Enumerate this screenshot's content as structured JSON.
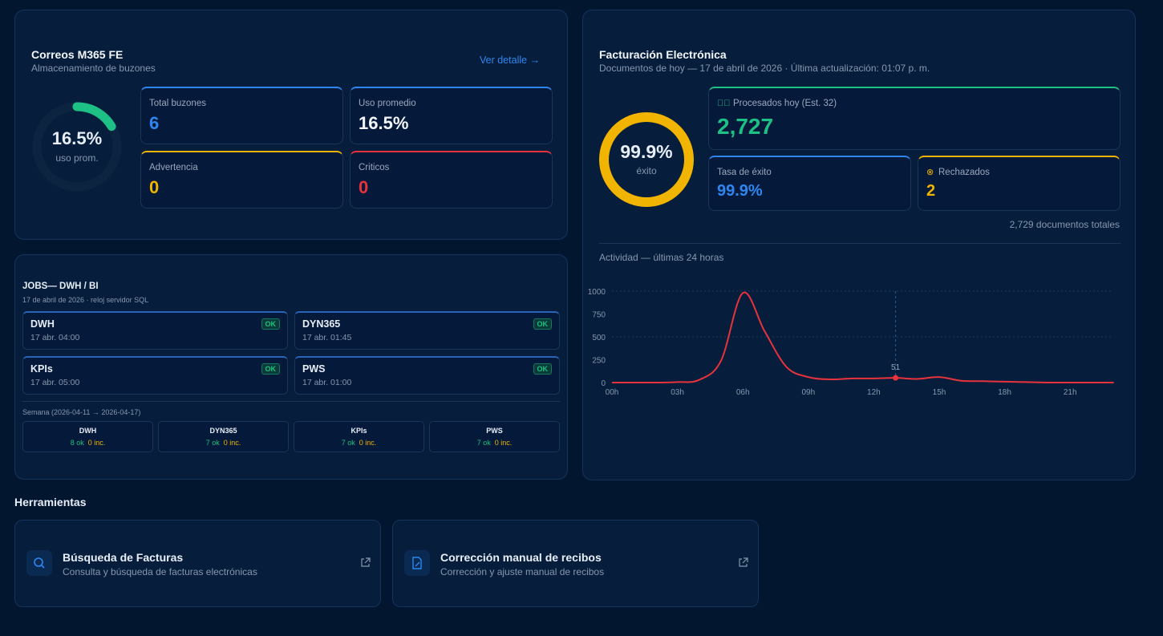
{
  "mail": {
    "title": "Correos M365 FE",
    "subtitle": "Almacenamiento de buzones",
    "detail_link": "Ver detalle",
    "gauge_value": "16.5%",
    "gauge_fraction": 0.165,
    "gauge_label": "uso prom.",
    "stats": [
      {
        "label": "Total buzones",
        "value": "6",
        "color": "#2f86f0"
      },
      {
        "label": "Uso promedio",
        "value": "16.5%",
        "color": "#f2f6fb"
      },
      {
        "label": "Advertencia",
        "value": "0",
        "color": "#f1b400"
      },
      {
        "label": "Criticos",
        "value": "0",
        "color": "#e8323c"
      }
    ]
  },
  "jobs": {
    "title": "JOBS— DWH / BI",
    "subtitle": "17 de abril de 2026 · reloj servidor SQL",
    "items": [
      {
        "name": "DWH",
        "time": "17 abr. 04:00",
        "status": "OK"
      },
      {
        "name": "DYN365",
        "time": "17 abr. 01:45",
        "status": "OK"
      },
      {
        "name": "KPIs",
        "time": "17 abr. 05:00",
        "status": "OK"
      },
      {
        "name": "PWS",
        "time": "17 abr. 01:00",
        "status": "OK"
      }
    ],
    "week_label": "Semana (2026-04-11 → 2026-04-17)",
    "week": [
      {
        "name": "DWH",
        "ok": "8 ok",
        "inc": "0 inc."
      },
      {
        "name": "DYN365",
        "ok": "7 ok",
        "inc": "0 inc."
      },
      {
        "name": "KPIs",
        "ok": "7 ok",
        "inc": "0 inc."
      },
      {
        "name": "PWS",
        "ok": "7 ok",
        "inc": "0 inc."
      }
    ]
  },
  "fe": {
    "title": "Facturación Electrónica",
    "subtitle": "Documentos de hoy — 17 de abril de 2026 · Última actualización: 01:07 p. m.",
    "gauge_value": "99.9%",
    "gauge_label": "éxito",
    "processed_label": "Procesados hoy (Est. 32)",
    "processed_value": "2,727",
    "rate_label": "Tasa de éxito",
    "rate_value": "99.9%",
    "rejected_label": "Rechazados",
    "rejected_value": "2",
    "total": "2,729 documentos totales",
    "activity_title": "Actividad — últimas 24 horas"
  },
  "chart_data": {
    "type": "line",
    "x": [
      "00h",
      "01h",
      "02h",
      "03h",
      "04h",
      "05h",
      "06h",
      "07h",
      "08h",
      "09h",
      "10h",
      "11h",
      "12h",
      "13h",
      "14h",
      "15h",
      "16h",
      "17h",
      "18h",
      "19h",
      "20h",
      "21h",
      "22h",
      "23h"
    ],
    "x_tick_labels": [
      "00h",
      "03h",
      "06h",
      "09h",
      "12h",
      "15h",
      "18h",
      "21h"
    ],
    "values": [
      0,
      0,
      0,
      5,
      30,
      240,
      980,
      560,
      170,
      60,
      35,
      45,
      45,
      51,
      40,
      60,
      20,
      15,
      10,
      5,
      0,
      0,
      0,
      0
    ],
    "ylim": [
      0,
      1000
    ],
    "y_ticks": [
      0,
      250,
      500,
      750,
      1000
    ],
    "highlight": {
      "x": "13h",
      "label": "51"
    },
    "color": "#e8323c",
    "grid": true
  },
  "tools": {
    "heading": "Herramientas",
    "items": [
      {
        "title": "Búsqueda de Facturas",
        "desc": "Consulta y búsqueda de facturas electrónicas",
        "icon": "search-icon"
      },
      {
        "title": "Corrección manual de recibos",
        "desc": "Corrección y ajuste manual de recibos",
        "icon": "file-edit-icon"
      }
    ]
  }
}
